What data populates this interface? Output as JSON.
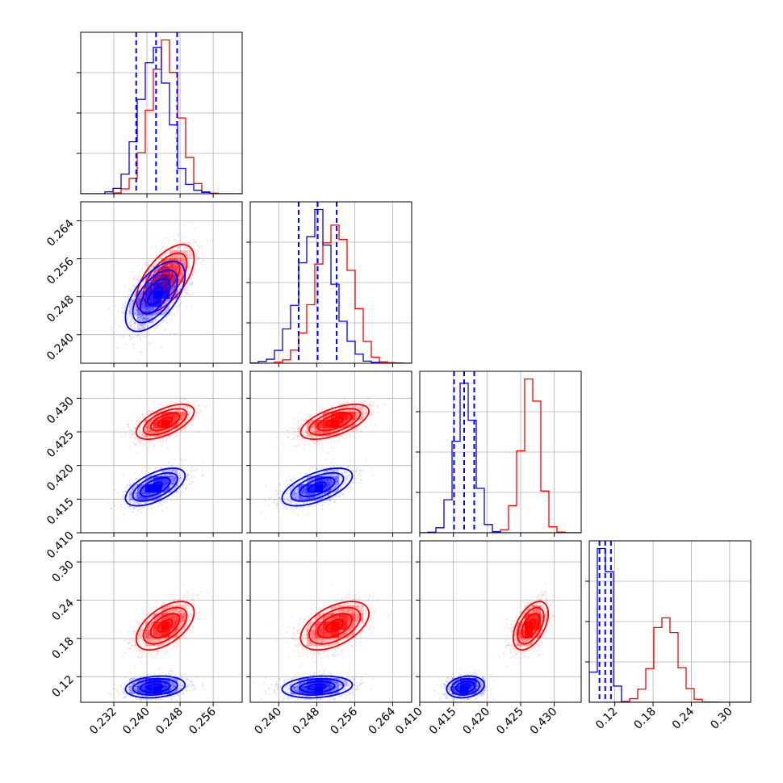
{
  "colors": {
    "series_a": "#ff0000",
    "series_b": "#0000ff"
  },
  "chart_data": {
    "type": "corner",
    "title": "",
    "grid": true,
    "series": [
      {
        "color": "#ff0000",
        "mean": [
          0.2444,
          0.2518,
          0.4265,
          0.2
        ],
        "std": [
          0.0035,
          0.0036,
          0.0013,
          0.019
        ],
        "corr": [
          [
            1,
            0.6,
            0.6,
            0.55
          ],
          [
            0.6,
            1,
            0.6,
            0.5
          ],
          [
            0.6,
            0.6,
            1,
            0.5
          ],
          [
            0.55,
            0.5,
            0.5,
            1
          ]
        ]
      },
      {
        "color": "#0000ff",
        "mean": [
          0.242,
          0.2481,
          0.4168,
          0.104
        ],
        "std": [
          0.0036,
          0.0037,
          0.0014,
          0.0085
        ],
        "corr": [
          [
            1,
            0.6,
            0.6,
            0.2
          ],
          [
            0.6,
            1,
            0.6,
            0.2
          ],
          [
            0.6,
            0.6,
            1,
            0.2
          ],
          [
            0.2,
            0.2,
            0.2,
            1
          ]
        ]
      }
    ],
    "quantile_lines": [
      [
        0.2374,
        0.2422,
        0.2473
      ],
      [
        0.2442,
        0.2482,
        0.2522
      ],
      [
        0.4151,
        0.4166,
        0.4181
      ],
      [
        0.096,
        0.105,
        0.114
      ]
    ],
    "axes": [
      {
        "range": [
          0.224,
          0.263
        ],
        "ticks": [
          "0.232",
          "0.240",
          "0.248",
          "0.256"
        ]
      },
      {
        "range": [
          0.234,
          0.268
        ],
        "ticks": [
          "0.240",
          "0.248",
          "0.256",
          "0.264"
        ]
      },
      {
        "range": [
          0.41,
          0.434
        ],
        "ticks": [
          "0.410",
          "0.415",
          "0.420",
          "0.425",
          "0.430"
        ]
      },
      {
        "range": [
          0.08,
          0.333
        ],
        "ticks": [
          "0.12",
          "0.18",
          "0.24",
          "0.30"
        ]
      }
    ]
  }
}
